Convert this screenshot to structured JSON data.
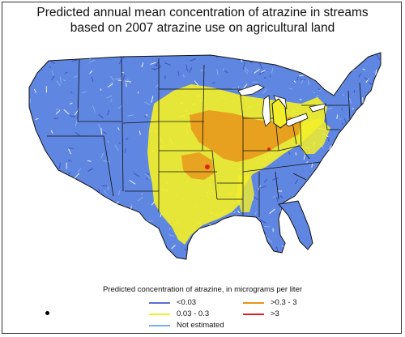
{
  "title": {
    "line1": "Predicted annual mean concentration of atrazine in streams",
    "line2": "based on 2007 atrazine use on agricultural land"
  },
  "legend": {
    "heading": "Predicted concentration of atrazine, in micrograms per liter",
    "items": [
      {
        "label": "<0.03",
        "color": "#5a6fd0"
      },
      {
        "label": ">0.3 - 3",
        "color": "#e8941a"
      },
      {
        "label": "0.03 - 0.3",
        "color": "#f2ef2a"
      },
      {
        "label": ">3",
        "color": "#e0221e"
      },
      {
        "label": "Not estimated",
        "color": "#7aaee6"
      }
    ]
  },
  "colors": {
    "land_base": "#5f86e0",
    "low": "#5a6fd0",
    "medium": "#f2ef2a",
    "high": "#e8941a",
    "very_high": "#e0221e",
    "borders": "#111111"
  }
}
